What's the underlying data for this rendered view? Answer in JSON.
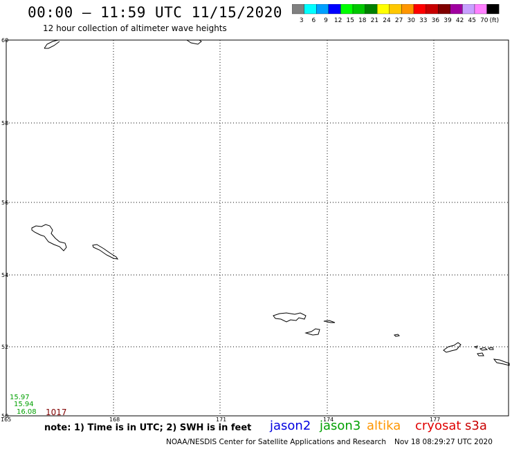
{
  "header": {
    "title": "00:00 – 11:59 UTC 11/15/2020",
    "subtitle": "12 hour collection of altimeter wave heights"
  },
  "legend": {
    "unit_label": "(ft)",
    "bins": [
      {
        "label": "3",
        "color": "#808080"
      },
      {
        "label": "6",
        "color": "#00ffff"
      },
      {
        "label": "9",
        "color": "#00a0ff"
      },
      {
        "label": "12",
        "color": "#0000ff"
      },
      {
        "label": "15",
        "color": "#00ff00"
      },
      {
        "label": "18",
        "color": "#00c800"
      },
      {
        "label": "21",
        "color": "#008000"
      },
      {
        "label": "24",
        "color": "#ffff00"
      },
      {
        "label": "27",
        "color": "#ffc800"
      },
      {
        "label": "30",
        "color": "#ff9600"
      },
      {
        "label": "33",
        "color": "#ff0000"
      },
      {
        "label": "36",
        "color": "#c80000"
      },
      {
        "label": "39",
        "color": "#800000"
      },
      {
        "label": "42",
        "color": "#a000a0"
      },
      {
        "label": "45",
        "color": "#c8a0ff"
      },
      {
        "label": "70",
        "color": "#ff80ff"
      },
      {
        "label": "",
        "color": "#000000"
      }
    ]
  },
  "map": {
    "lon_ticks": [
      "165",
      "168",
      "171",
      "174",
      "177"
    ],
    "lat_ticks": [
      "60",
      "58",
      "56",
      "54",
      "52",
      "50"
    ],
    "observations": [
      {
        "text": "15.97",
        "color": "#00a000"
      },
      {
        "text": "15.94",
        "color": "#00a000"
      },
      {
        "text": "16.08",
        "color": "#00a000"
      },
      {
        "text": "1017",
        "color": "#800000"
      }
    ]
  },
  "note": "note: 1) Time is in UTC; 2) SWH is in feet",
  "satellites": [
    {
      "name": "jason2",
      "color": "#0000e0"
    },
    {
      "name": "jason3",
      "color": "#00a000"
    },
    {
      "name": "altika",
      "color": "#ff9600"
    },
    {
      "name": "cryosat",
      "color": "#e00000"
    },
    {
      "name": "s3a",
      "color": "#c80000"
    }
  ],
  "footer": {
    "credit": "NOAA/NESDIS Center for Satellite Applications and Research",
    "timestamp": "Nov 18 08:29:27 UTC 2020"
  }
}
